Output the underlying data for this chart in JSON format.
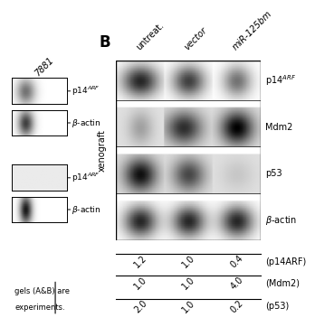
{
  "panel_B_label": "B",
  "ylabel": "xenograft",
  "col_labels": [
    "untreat.",
    "vector",
    "miR-125bm"
  ],
  "row_labels": [
    "p14$^{ARF}$",
    "Mdm2",
    "p53",
    "$\\beta$-actin"
  ],
  "quant_rows": [
    {
      "values": [
        "1.2",
        "1.0",
        "0.4"
      ],
      "label": "(p14ARF)"
    },
    {
      "values": [
        "1.0",
        "1.0",
        "4.0"
      ],
      "label": "(Mdm2)"
    },
    {
      "values": [
        "2.0",
        "1.0",
        "0.2"
      ],
      "label": "(p53)"
    }
  ],
  "left_blots": [
    {
      "label": "p14$^{ARF}$",
      "band_type": "p14arf_A1"
    },
    {
      "label": "$\\beta$-actin",
      "band_type": "bactin_A1"
    },
    {
      "label": "p14$^{ARF}$",
      "band_type": "p14arf_A2"
    },
    {
      "label": "$\\beta$-actin",
      "band_type": "bactin_A2"
    }
  ],
  "left_title": "7881",
  "bottom_text_line1": "gels (A&B) are",
  "bottom_text_line2": "experiments.",
  "background": "#ffffff"
}
